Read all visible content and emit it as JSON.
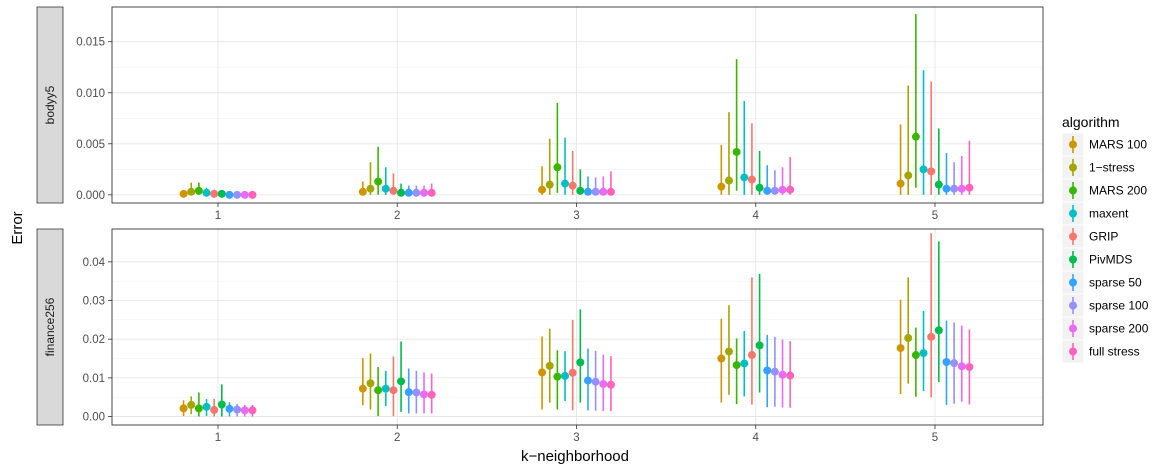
{
  "chart_data": {
    "type": "pointrange",
    "xlabel": "k−neighborhood",
    "ylabel": "Error",
    "categories": [
      "1",
      "2",
      "3",
      "4",
      "5"
    ],
    "grid": true,
    "legend": {
      "title": "algorithm",
      "position": "right",
      "entries": [
        {
          "name": "MARS 100",
          "color": "#CD9600"
        },
        {
          "name": "1−stress",
          "color": "#A3A500"
        },
        {
          "name": "MARS 200",
          "color": "#39B600"
        },
        {
          "name": "maxent",
          "color": "#00BFC4"
        },
        {
          "name": "GRIP",
          "color": "#F8766D"
        },
        {
          "name": "PivMDS",
          "color": "#00BB4E"
        },
        {
          "name": "sparse 50",
          "color": "#35A2FF"
        },
        {
          "name": "sparse 100",
          "color": "#9590FF"
        },
        {
          "name": "sparse 200",
          "color": "#E76BF3"
        },
        {
          "name": "full stress",
          "color": "#FF62BC"
        }
      ]
    },
    "panels": [
      {
        "strip": "bodyy5",
        "ylim": [
          -0.0008,
          0.0184
        ],
        "yticks": [
          0,
          0.005,
          0.01,
          0.015
        ],
        "ytick_labels": [
          "0.000",
          "0.005",
          "0.010",
          "0.015"
        ],
        "series": [
          {
            "name": "MARS 100",
            "values": [
              0.0001,
              0.0003,
              0.0005,
              0.0008,
              0.0011
            ],
            "low": [
              0.0,
              0.0,
              0.0,
              0.0,
              0.0
            ],
            "high": [
              0.0004,
              0.0013,
              0.0028,
              0.0049,
              0.0069
            ]
          },
          {
            "name": "1−stress",
            "values": [
              0.0003,
              0.0006,
              0.001,
              0.0014,
              0.0019
            ],
            "low": [
              0.0,
              0.0,
              0.0,
              0.0,
              0.0
            ],
            "high": [
              0.0012,
              0.0032,
              0.0055,
              0.0081,
              0.0107
            ]
          },
          {
            "name": "MARS 200",
            "values": [
              0.0004,
              0.0013,
              0.0027,
              0.0042,
              0.0057
            ],
            "low": [
              0.0,
              0.0,
              0.0002,
              0.0004,
              0.0007
            ],
            "high": [
              0.0012,
              0.0047,
              0.009,
              0.0133,
              0.0177
            ]
          },
          {
            "name": "maxent",
            "values": [
              0.0002,
              0.0006,
              0.0011,
              0.0017,
              0.0025
            ],
            "low": [
              0.0,
              0.0,
              0.0,
              0.0,
              0.0
            ],
            "high": [
              0.0007,
              0.0027,
              0.0056,
              0.0092,
              0.0122
            ]
          },
          {
            "name": "GRIP",
            "values": [
              0.0001,
              0.0004,
              0.0009,
              0.0015,
              0.0023
            ],
            "low": [
              0.0,
              0.0,
              0.0,
              0.0,
              0.0
            ],
            "high": [
              0.0005,
              0.0021,
              0.0043,
              0.007,
              0.0111
            ]
          },
          {
            "name": "PivMDS",
            "values": [
              0.0001,
              0.0002,
              0.0004,
              0.0007,
              0.001
            ],
            "low": [
              0.0,
              0.0,
              0.0,
              0.0,
              0.0
            ],
            "high": [
              0.0003,
              0.0011,
              0.0025,
              0.0043,
              0.0065
            ]
          },
          {
            "name": "sparse 50",
            "values": [
              0.0,
              0.0002,
              0.0003,
              0.0004,
              0.0006
            ],
            "low": [
              0.0,
              0.0,
              0.0,
              0.0,
              0.0
            ],
            "high": [
              0.0003,
              0.0009,
              0.0018,
              0.0029,
              0.0041
            ]
          },
          {
            "name": "sparse 100",
            "values": [
              0.0,
              0.0002,
              0.0003,
              0.0004,
              0.0006
            ],
            "low": [
              0.0,
              0.0,
              0.0,
              0.0,
              0.0
            ],
            "high": [
              0.0003,
              0.0009,
              0.0017,
              0.0024,
              0.0032
            ]
          },
          {
            "name": "sparse 200",
            "values": [
              0.0,
              0.0002,
              0.0003,
              0.0005,
              0.0006
            ],
            "low": [
              0.0,
              0.0,
              0.0,
              0.0,
              0.0
            ],
            "high": [
              0.0003,
              0.0009,
              0.0018,
              0.0027,
              0.0038
            ]
          },
          {
            "name": "full stress",
            "values": [
              0.0,
              0.0002,
              0.0003,
              0.0005,
              0.0007
            ],
            "low": [
              0.0,
              0.0,
              0.0,
              0.0,
              0.0
            ],
            "high": [
              0.0004,
              0.0011,
              0.0023,
              0.0037,
              0.0053
            ]
          }
        ]
      },
      {
        "strip": "finance256",
        "ylim": [
          -0.0022,
          0.0485
        ],
        "yticks": [
          0,
          0.01,
          0.02,
          0.03,
          0.04
        ],
        "ytick_labels": [
          "0.00",
          "0.01",
          "0.02",
          "0.03",
          "0.04"
        ],
        "series": [
          {
            "name": "MARS 100",
            "values": [
              0.0021,
              0.0072,
              0.0114,
              0.015,
              0.0177
            ],
            "low": [
              0.0001,
              0.0029,
              0.0018,
              0.0036,
              0.0058
            ],
            "high": [
              0.0042,
              0.0151,
              0.0207,
              0.0253,
              0.0302
            ]
          },
          {
            "name": "1−stress",
            "values": [
              0.003,
              0.0086,
              0.0131,
              0.0168,
              0.0203
            ],
            "low": [
              0.0006,
              0.0018,
              0.0036,
              0.0056,
              0.0085
            ],
            "high": [
              0.0052,
              0.0163,
              0.0227,
              0.0288,
              0.036
            ]
          },
          {
            "name": "MARS 200",
            "values": [
              0.0021,
              0.0068,
              0.0103,
              0.0133,
              0.0159
            ],
            "low": [
              0.0,
              0.0001,
              0.0018,
              0.0032,
              0.0051
            ],
            "high": [
              0.0062,
              0.0128,
              0.0171,
              0.0202,
              0.023
            ]
          },
          {
            "name": "maxent",
            "values": [
              0.0025,
              0.0072,
              0.0105,
              0.0137,
              0.0164
            ],
            "low": [
              0.0001,
              0.0027,
              0.004,
              0.0052,
              0.0066
            ],
            "high": [
              0.0045,
              0.0118,
              0.0169,
              0.0221,
              0.0273
            ]
          },
          {
            "name": "GRIP",
            "values": [
              0.0017,
              0.0068,
              0.0113,
              0.0159,
              0.0206
            ],
            "low": [
              0.0,
              0.0001,
              0.0016,
              0.0031,
              0.0049
            ],
            "high": [
              0.0046,
              0.0155,
              0.025,
              0.036,
              0.0474
            ]
          },
          {
            "name": "PivMDS",
            "values": [
              0.0031,
              0.0091,
              0.014,
              0.0184,
              0.0223
            ],
            "low": [
              0.0,
              0.0012,
              0.0036,
              0.0062,
              0.0089
            ],
            "high": [
              0.0083,
              0.0194,
              0.0277,
              0.0369,
              0.0453
            ]
          },
          {
            "name": "sparse 50",
            "values": [
              0.002,
              0.0063,
              0.0093,
              0.0119,
              0.0141
            ],
            "low": [
              0.0,
              0.0008,
              0.0016,
              0.0024,
              0.003
            ],
            "high": [
              0.0037,
              0.0124,
              0.0176,
              0.0211,
              0.0248
            ]
          },
          {
            "name": "sparse 100",
            "values": [
              0.0018,
              0.0062,
              0.009,
              0.0116,
              0.0138
            ],
            "low": [
              0.0,
              0.0008,
              0.0015,
              0.0025,
              0.0033
            ],
            "high": [
              0.0033,
              0.0118,
              0.017,
              0.0206,
              0.0243
            ]
          },
          {
            "name": "sparse 200",
            "values": [
              0.0016,
              0.0057,
              0.0084,
              0.0108,
              0.013
            ],
            "low": [
              0.0,
              0.0008,
              0.0014,
              0.0023,
              0.0038
            ],
            "high": [
              0.003,
              0.0114,
              0.016,
              0.0199,
              0.0235
            ]
          },
          {
            "name": "full stress",
            "values": [
              0.0016,
              0.0056,
              0.0082,
              0.0106,
              0.0128
            ],
            "low": [
              0.0,
              0.0008,
              0.0014,
              0.0023,
              0.0031
            ],
            "high": [
              0.003,
              0.0111,
              0.0156,
              0.0195,
              0.0225
            ]
          }
        ]
      }
    ]
  }
}
